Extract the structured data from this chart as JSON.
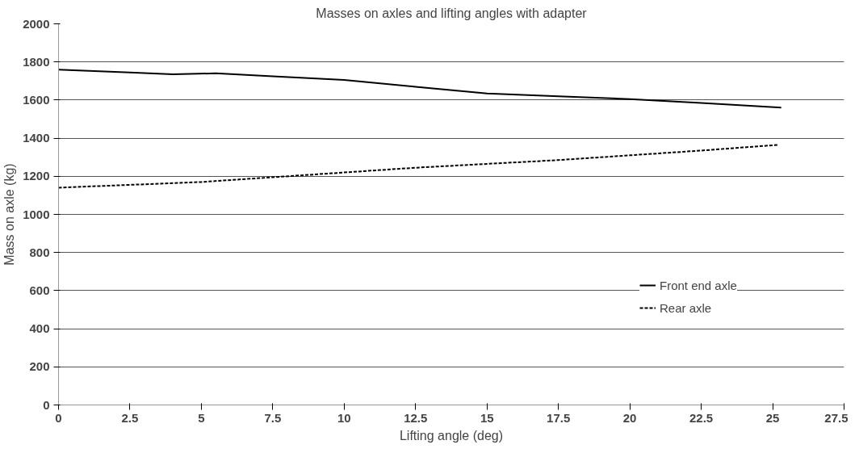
{
  "chart_data": {
    "type": "line",
    "title": "Masses on axles and lifting angles with adapter",
    "xlabel": "Lifting angle (deg)",
    "ylabel": "Mass on axle (kg)",
    "xlim": [
      0,
      27.5
    ],
    "xticks": [
      0,
      2.5,
      5,
      7.5,
      10,
      12.5,
      15,
      17.5,
      20,
      22.5,
      25,
      27.5
    ],
    "ylim": [
      0,
      2000
    ],
    "yticks": [
      0,
      200,
      400,
      600,
      800,
      1000,
      1200,
      1400,
      1600,
      1800,
      2000
    ],
    "grid": "y",
    "legend": "right",
    "marker": "none",
    "series": [
      {
        "name": "Front end axle",
        "color": "#000000",
        "line_style": "solid",
        "x": [
          0,
          2.5,
          4,
          5.5,
          7.5,
          10,
          12.5,
          15,
          17.5,
          20,
          22.5,
          25.3
        ],
        "values": [
          1760,
          1745,
          1735,
          1740,
          1725,
          1705,
          1670,
          1635,
          1620,
          1605,
          1585,
          1560
        ]
      },
      {
        "name": "Rear axle",
        "color": "#000000",
        "line_style": "dashed",
        "x": [
          0,
          2.5,
          5,
          7.5,
          10,
          12.5,
          15,
          17.5,
          20,
          22.5,
          25.2
        ],
        "values": [
          1140,
          1155,
          1170,
          1195,
          1220,
          1245,
          1265,
          1285,
          1310,
          1335,
          1365
        ]
      }
    ]
  }
}
